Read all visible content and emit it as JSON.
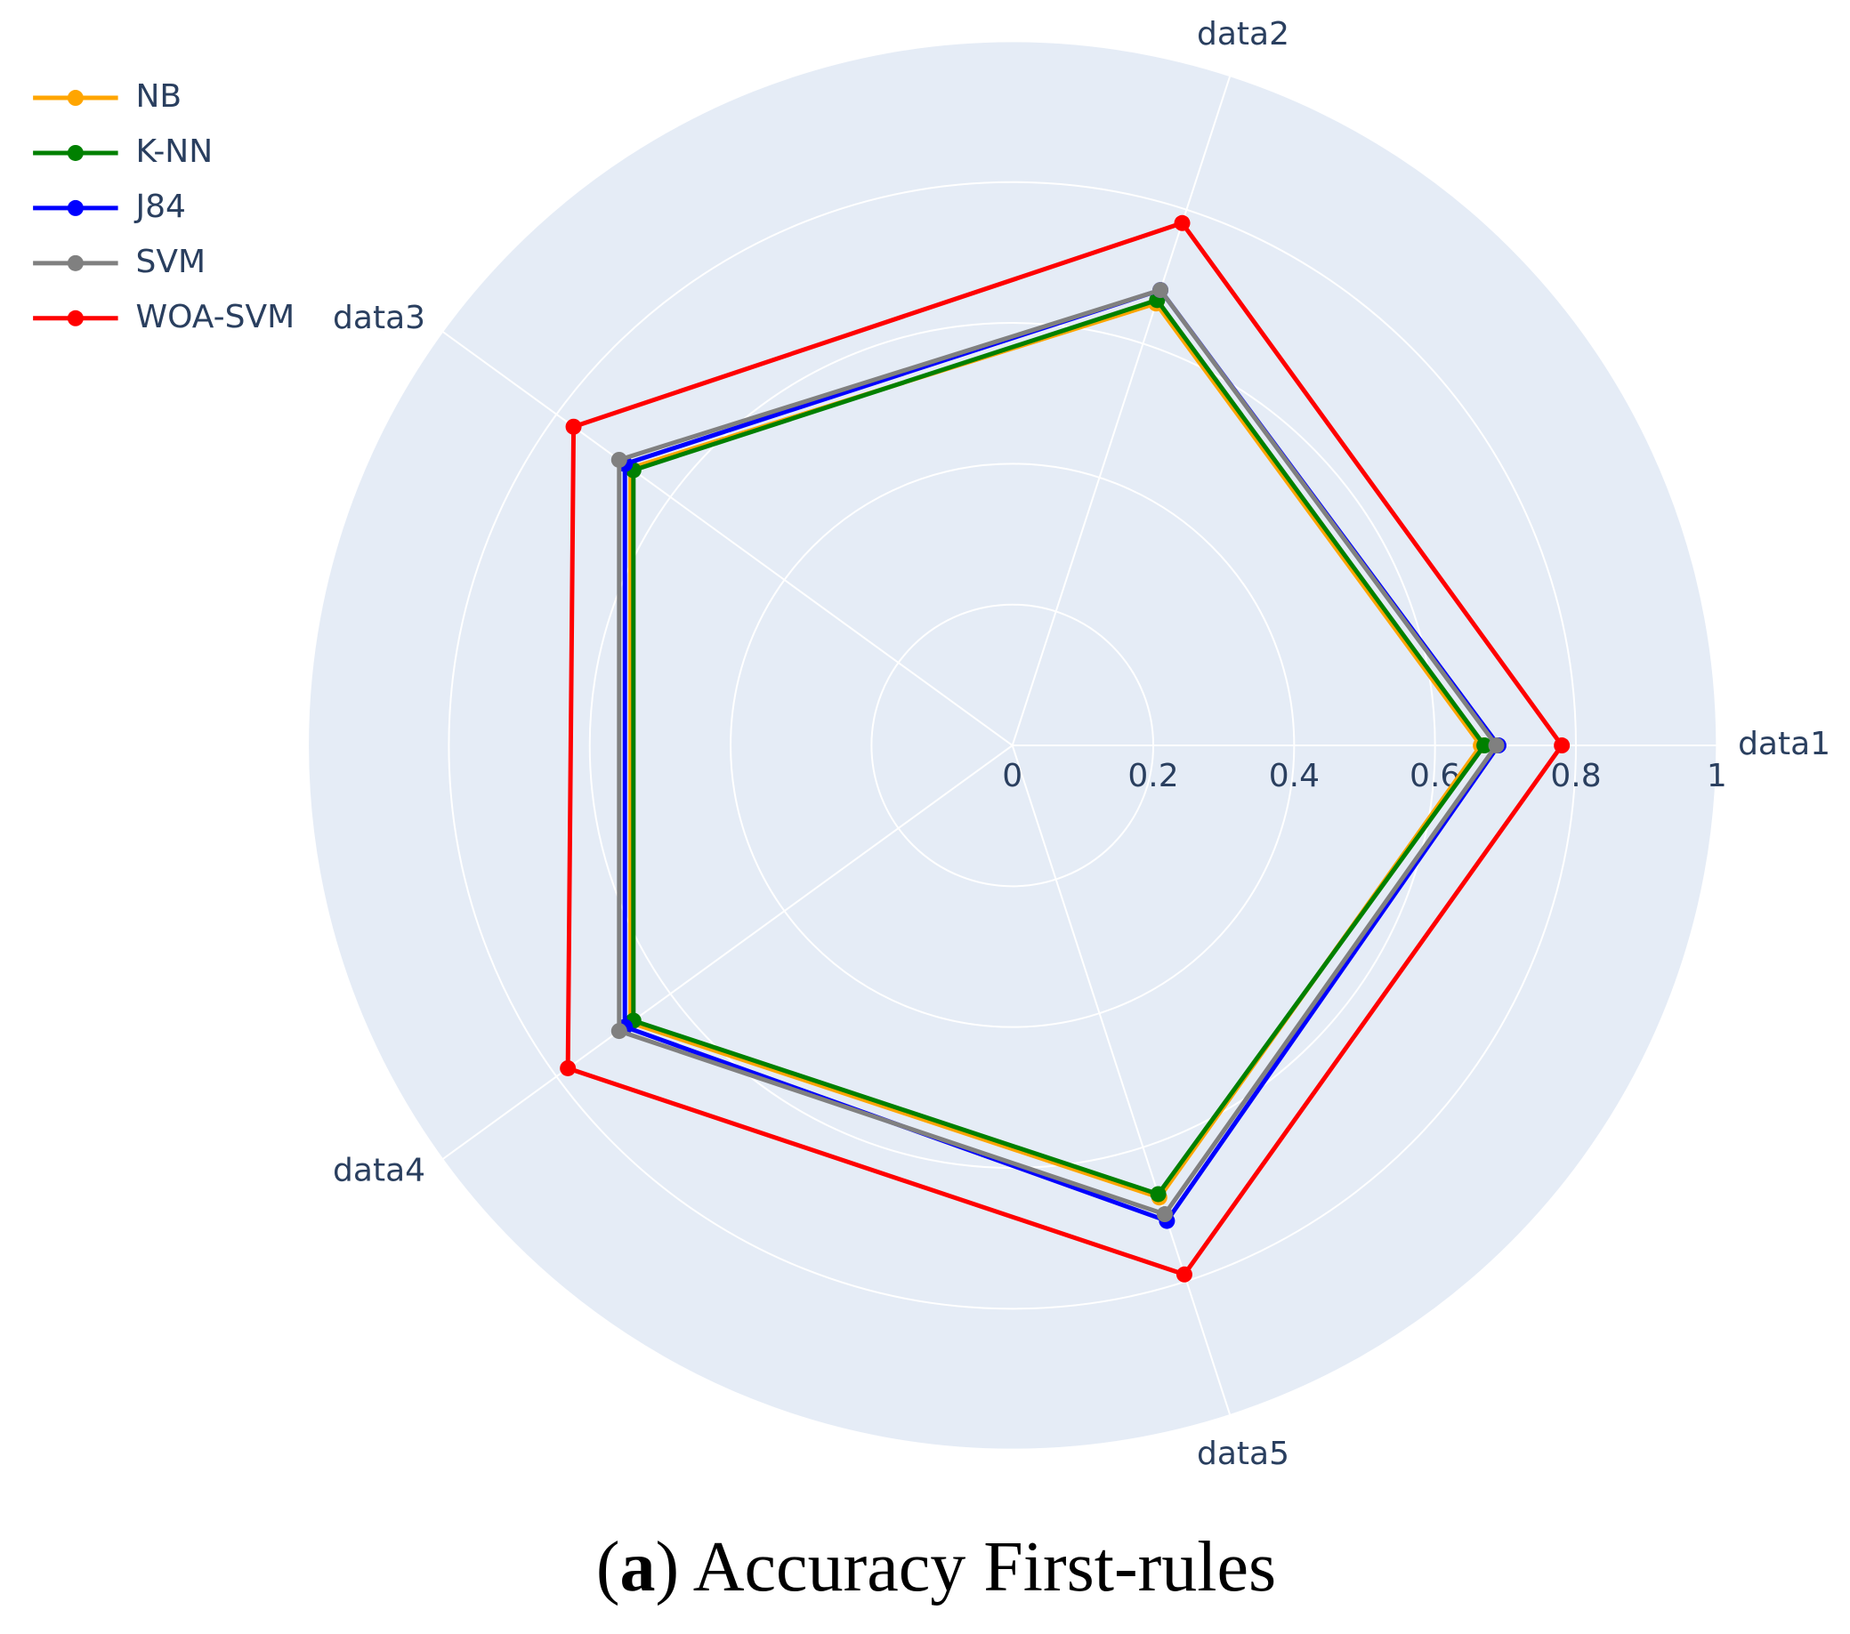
{
  "chart_data": {
    "type": "radar",
    "categories": [
      "data1",
      "data2",
      "data3",
      "data4",
      "data5"
    ],
    "rlim": [
      0,
      1
    ],
    "rticks": [
      0,
      0.2,
      0.4,
      0.6,
      0.8,
      1
    ],
    "grid": true,
    "legend": "top-left",
    "series": [
      {
        "name": "NB",
        "color": "#ffa500",
        "values": [
          0.665,
          0.66,
          0.67,
          0.67,
          0.675
        ]
      },
      {
        "name": "K-NN",
        "color": "#008000",
        "values": [
          0.67,
          0.665,
          0.665,
          0.665,
          0.67
        ]
      },
      {
        "name": "J84",
        "color": "#0000ff",
        "values": [
          0.69,
          0.68,
          0.68,
          0.68,
          0.71
        ]
      },
      {
        "name": "SVM",
        "color": "#808080",
        "values": [
          0.687,
          0.68,
          0.69,
          0.69,
          0.7
        ]
      },
      {
        "name": "WOA-SVM",
        "color": "#ff0000",
        "values": [
          0.78,
          0.78,
          0.77,
          0.78,
          0.79
        ]
      }
    ],
    "caption": [
      "(",
      "a",
      ") Accuracy First-rules"
    ]
  }
}
